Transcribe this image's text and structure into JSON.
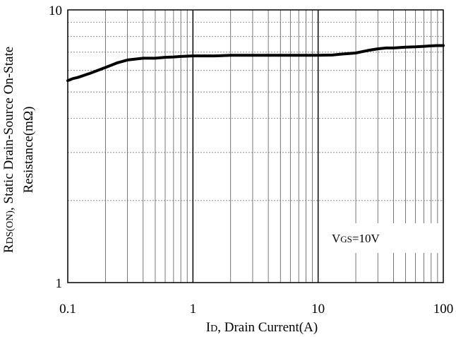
{
  "chart_data": {
    "type": "line",
    "xscale": "log",
    "yscale": "log",
    "xlim": [
      0.1,
      100
    ],
    "ylim": [
      1,
      10
    ],
    "x_ticks": [
      {
        "value": 0.1,
        "label": "0.1"
      },
      {
        "value": 1,
        "label": "1"
      },
      {
        "value": 10,
        "label": "10"
      },
      {
        "value": 100,
        "label": "100"
      }
    ],
    "y_ticks": [
      {
        "value": 1,
        "label": "1"
      },
      {
        "value": 10,
        "label": "10"
      }
    ],
    "xlabel": {
      "main": "I",
      "sub": "D",
      "rest": ", Drain Current(A)"
    },
    "ylabel": {
      "line1_main": "R",
      "line1_sub": "DS(ON)",
      "line1_rest": ", Static Drain-Source On-State",
      "line2": "Resistance(mΩ)"
    },
    "annotation": {
      "main": "V",
      "sub": "GS",
      "rest": "=10V"
    },
    "grid": true,
    "series": [
      {
        "color": "#000000",
        "x": [
          0.1,
          0.11,
          0.12,
          0.15,
          0.2,
          0.25,
          0.3,
          0.4,
          0.5,
          0.6,
          0.7,
          0.8,
          1,
          1.5,
          2,
          3,
          5,
          7,
          10,
          13,
          15,
          20,
          25,
          30,
          35,
          40,
          50,
          60,
          70,
          80,
          90,
          100
        ],
        "y": [
          5.5,
          5.6,
          5.65,
          5.85,
          6.15,
          6.4,
          6.55,
          6.65,
          6.65,
          6.7,
          6.72,
          6.75,
          6.78,
          6.78,
          6.82,
          6.82,
          6.82,
          6.82,
          6.82,
          6.83,
          6.88,
          6.95,
          7.1,
          7.2,
          7.25,
          7.25,
          7.3,
          7.32,
          7.35,
          7.38,
          7.4,
          7.4
        ]
      }
    ]
  }
}
